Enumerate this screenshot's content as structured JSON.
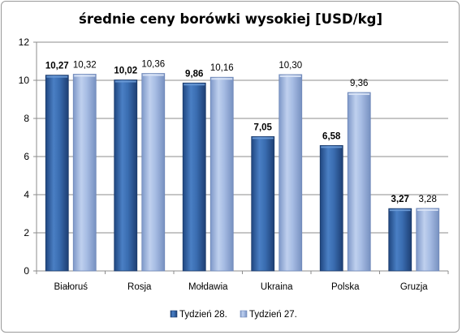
{
  "chart_data": {
    "type": "bar",
    "title": "średnie ceny borówki wysokiej [USD/kg]",
    "categories": [
      "Białoruś",
      "Rosja",
      "Mołdawia",
      "Ukraina",
      "Polska",
      "Gruzja"
    ],
    "series": [
      {
        "name": "Tydzień 28.",
        "values": [
          10.27,
          10.02,
          9.86,
          7.05,
          6.58,
          3.27
        ],
        "labels": [
          "10,27",
          "10,02",
          "9,86",
          "7,05",
          "6,58",
          "3,27"
        ],
        "color": "#2f5f9f",
        "label_bold": true
      },
      {
        "name": "Tydzień 27.",
        "values": [
          10.32,
          10.36,
          10.16,
          10.3,
          9.36,
          3.28
        ],
        "labels": [
          "10,32",
          "10,36",
          "10,16",
          "10,30",
          "9,36",
          "3,28"
        ],
        "color": "#9ab1d9",
        "label_bold": false
      }
    ],
    "ylim": [
      0,
      12
    ],
    "yticks": [
      "0",
      "2",
      "4",
      "6",
      "8",
      "10",
      "12"
    ],
    "ytick_values": [
      0,
      2,
      4,
      6,
      8,
      10,
      12
    ],
    "grid": true,
    "legend_position": "bottom"
  }
}
